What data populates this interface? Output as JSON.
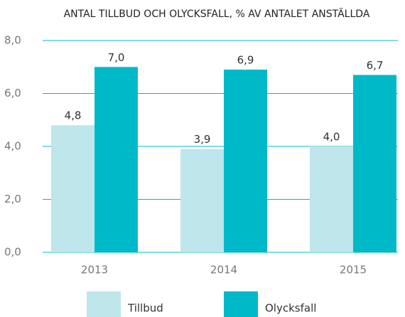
{
  "chart_data": {
    "type": "bar",
    "title": "ANTAL TILLBUD OCH OLYCKSFALL, % AV ANTALET ANSTÄLLDA",
    "categories": [
      "2013",
      "2014",
      "2015"
    ],
    "series": [
      {
        "name": "Tillbud",
        "color": "#bfe6ea",
        "values": [
          4.8,
          3.9,
          4.0
        ],
        "value_labels": [
          "4,8",
          "3,9",
          "4,0"
        ]
      },
      {
        "name": "Olycksfall",
        "color": "#00b9c8",
        "values": [
          7.0,
          6.9,
          6.7
        ],
        "value_labels": [
          "7,0",
          "6,9",
          "6,7"
        ]
      }
    ],
    "ylim": [
      0,
      8
    ],
    "yticks": [
      {
        "value": 0,
        "label": "0,0"
      },
      {
        "value": 2,
        "label": "2,0"
      },
      {
        "value": 4,
        "label": "4,0"
      },
      {
        "value": 6,
        "label": "6,0"
      },
      {
        "value": 8,
        "label": "8,0"
      }
    ],
    "grid": true,
    "legend": "bottom"
  }
}
